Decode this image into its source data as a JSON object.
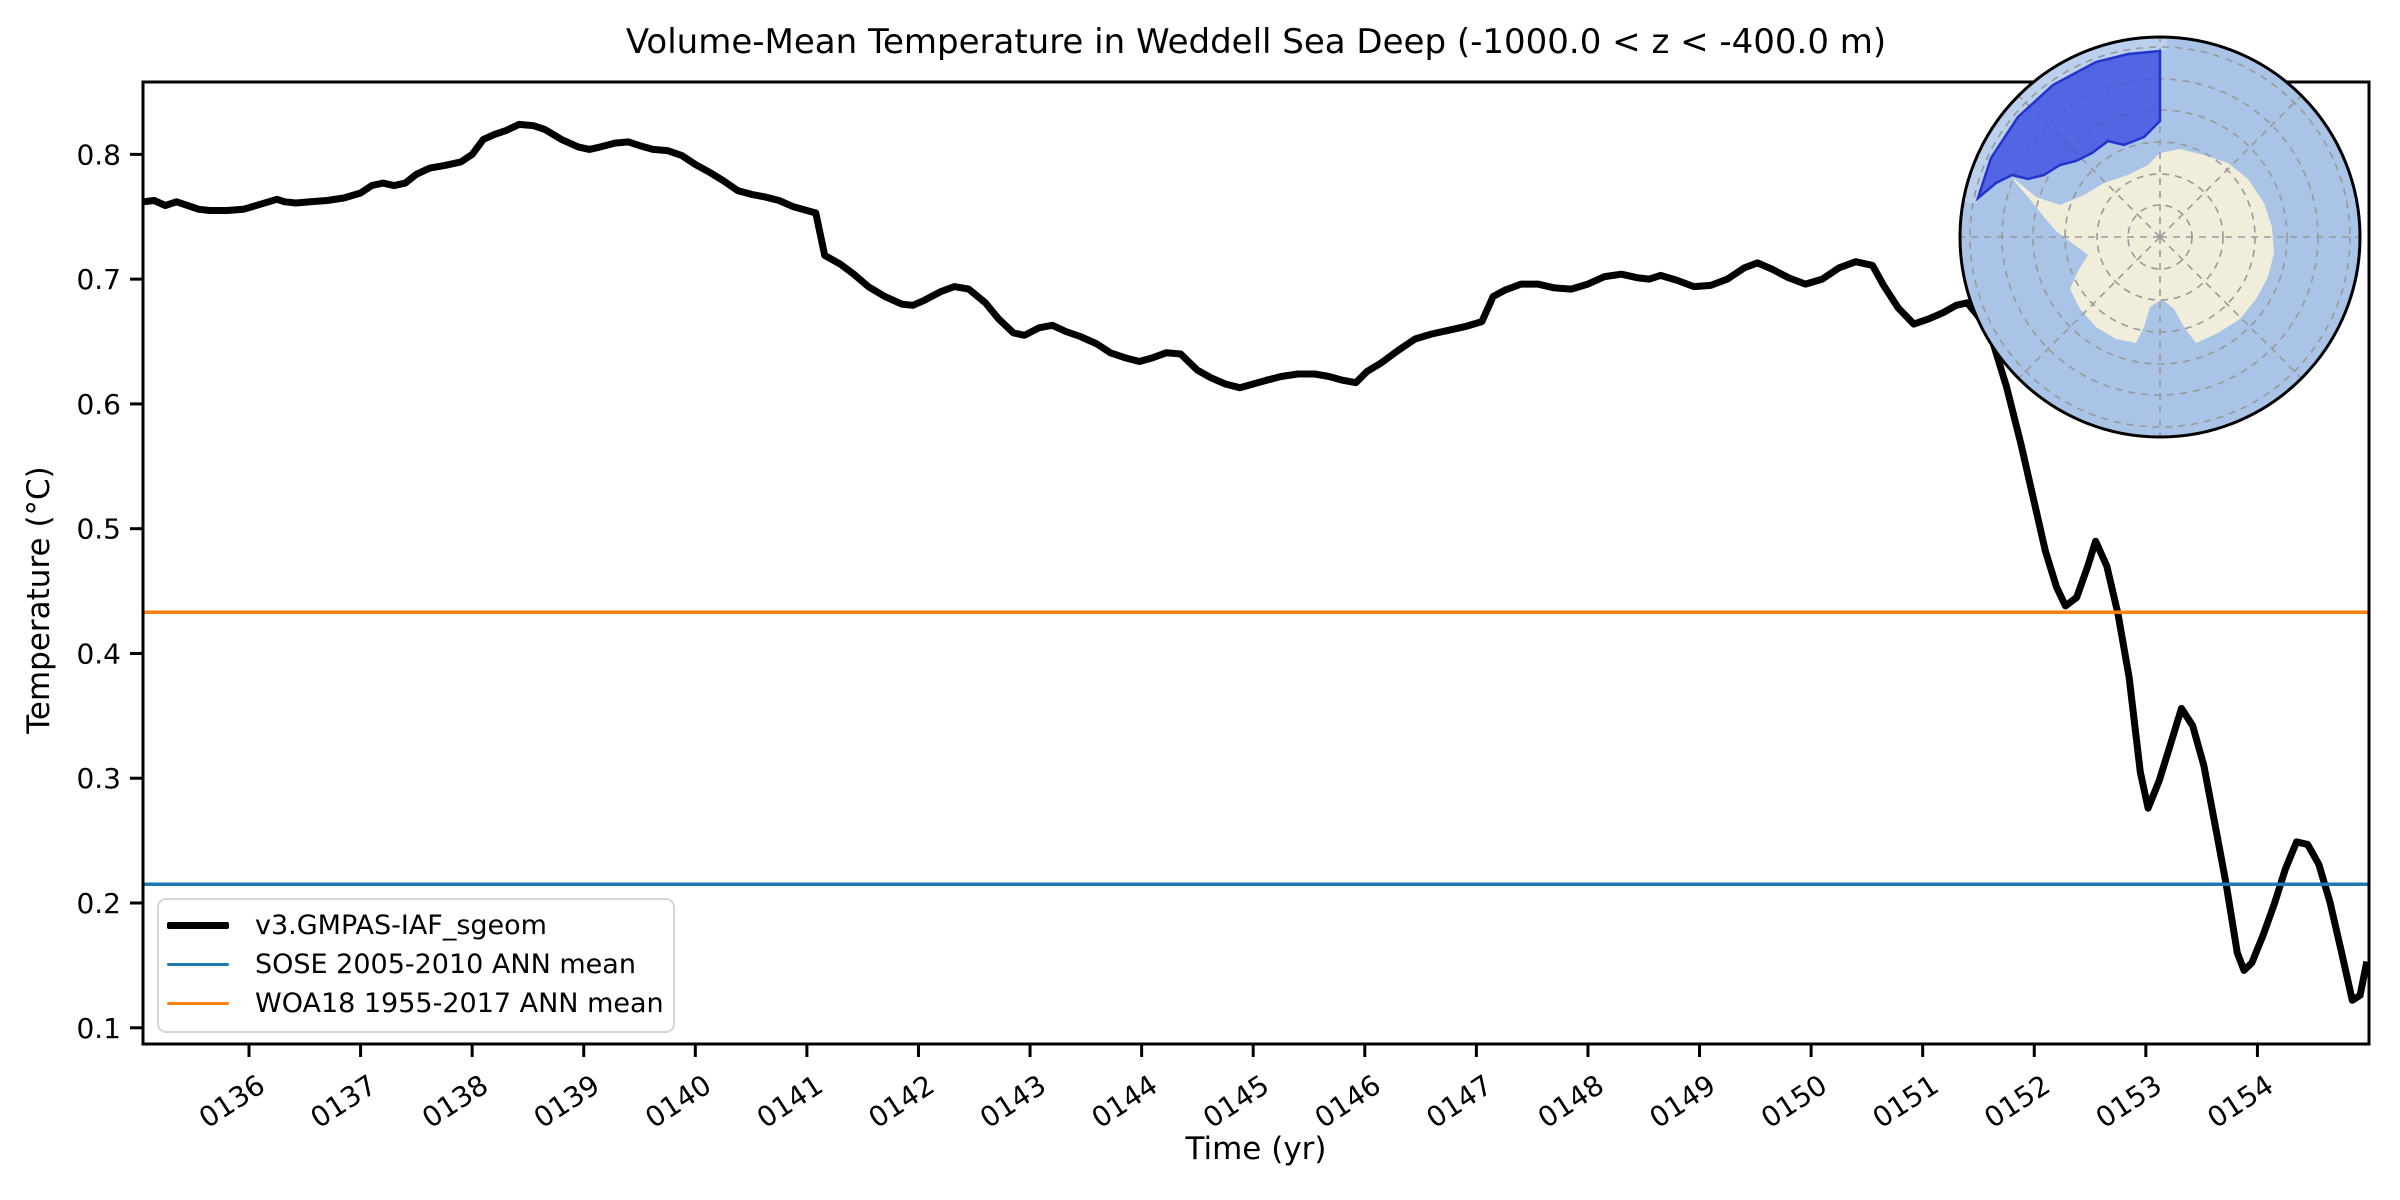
{
  "figure": {
    "title": "Volume-Mean Temperature in Weddell Sea Deep (-1000.0 < z < -400.0 m)",
    "background": "#ffffff"
  },
  "axes": {
    "xlabel": "Time (yr)",
    "ylabel": "Temperature (°C)",
    "tick_color": "#000000",
    "spine_color": "#000000"
  },
  "legend": {
    "items": [
      {
        "label": "v3.GMPAS-IAF_sgeom",
        "color": "#000000",
        "linewidth": 7
      },
      {
        "label": "SOSE 2005-2010 ANN mean",
        "color": "#1f77b4",
        "linewidth": 3.5
      },
      {
        "label": "WOA18 1955-2017 ANN mean",
        "color": "#ff7f0e",
        "linewidth": 3.5
      }
    ]
  },
  "inset_map": {
    "description": "South polar stereographic map of Antarctica with highlighted analysis region",
    "region_label": "Weddell Sea region",
    "colors": {
      "ocean": "#a9c4e6",
      "outer_band": "#bad0ed",
      "land": "#f0eeda",
      "highlight_fill": "#3a4ae0",
      "highlight_edge": "#2433cc",
      "graticule": "#999999",
      "outline": "#000000"
    }
  },
  "chart_data": {
    "type": "line",
    "title": "Volume-Mean Temperature in Weddell Sea Deep (-1000.0 < z < -400.0 m)",
    "xlabel": "Time (yr)",
    "ylabel": "Temperature (°C)",
    "xlim": [
      135.05,
      155.0
    ],
    "ylim": [
      0.087,
      0.858
    ],
    "grid": false,
    "legend_position": "lower left",
    "x_ticks": [
      {
        "value": 136,
        "label": "0136"
      },
      {
        "value": 137,
        "label": "0137"
      },
      {
        "value": 138,
        "label": "0138"
      },
      {
        "value": 139,
        "label": "0139"
      },
      {
        "value": 140,
        "label": "0140"
      },
      {
        "value": 141,
        "label": "0141"
      },
      {
        "value": 142,
        "label": "0142"
      },
      {
        "value": 143,
        "label": "0143"
      },
      {
        "value": 144,
        "label": "0144"
      },
      {
        "value": 145,
        "label": "0145"
      },
      {
        "value": 146,
        "label": "0146"
      },
      {
        "value": 147,
        "label": "0147"
      },
      {
        "value": 148,
        "label": "0148"
      },
      {
        "value": 149,
        "label": "0149"
      },
      {
        "value": 150,
        "label": "0150"
      },
      {
        "value": 151,
        "label": "0151"
      },
      {
        "value": 152,
        "label": "0152"
      },
      {
        "value": 153,
        "label": "0153"
      },
      {
        "value": 154,
        "label": "0154"
      }
    ],
    "y_ticks": [
      {
        "value": 0.1,
        "label": "0.1"
      },
      {
        "value": 0.2,
        "label": "0.2"
      },
      {
        "value": 0.3,
        "label": "0.3"
      },
      {
        "value": 0.4,
        "label": "0.4"
      },
      {
        "value": 0.5,
        "label": "0.5"
      },
      {
        "value": 0.6,
        "label": "0.6"
      },
      {
        "value": 0.7,
        "label": "0.7"
      },
      {
        "value": 0.8,
        "label": "0.8"
      }
    ],
    "hlines": [
      {
        "name": "SOSE 2005-2010 ANN mean",
        "value": 0.215,
        "color": "#1f77b4",
        "linewidth": 3.5
      },
      {
        "name": "WOA18 1955-2017 ANN mean",
        "value": 0.433,
        "color": "#ff7f0e",
        "linewidth": 3.5
      }
    ],
    "series": [
      {
        "name": "v3.GMPAS-IAF_sgeom",
        "color": "#000000",
        "linewidth": 7,
        "points": [
          [
            135.05,
            0.762
          ],
          [
            135.15,
            0.763
          ],
          [
            135.25,
            0.759
          ],
          [
            135.35,
            0.762
          ],
          [
            135.45,
            0.759
          ],
          [
            135.55,
            0.756
          ],
          [
            135.65,
            0.755
          ],
          [
            135.8,
            0.755
          ],
          [
            135.95,
            0.756
          ],
          [
            136.1,
            0.76
          ],
          [
            136.25,
            0.764
          ],
          [
            136.32,
            0.762
          ],
          [
            136.42,
            0.761
          ],
          [
            136.55,
            0.762
          ],
          [
            136.7,
            0.763
          ],
          [
            136.85,
            0.765
          ],
          [
            137.0,
            0.769
          ],
          [
            137.1,
            0.775
          ],
          [
            137.2,
            0.777
          ],
          [
            137.3,
            0.775
          ],
          [
            137.4,
            0.777
          ],
          [
            137.5,
            0.784
          ],
          [
            137.62,
            0.789
          ],
          [
            137.75,
            0.791
          ],
          [
            137.9,
            0.794
          ],
          [
            138.0,
            0.8
          ],
          [
            138.1,
            0.812
          ],
          [
            138.2,
            0.816
          ],
          [
            138.3,
            0.819
          ],
          [
            138.42,
            0.824
          ],
          [
            138.55,
            0.823
          ],
          [
            138.65,
            0.82
          ],
          [
            138.8,
            0.812
          ],
          [
            138.95,
            0.806
          ],
          [
            139.05,
            0.804
          ],
          [
            139.15,
            0.806
          ],
          [
            139.28,
            0.809
          ],
          [
            139.4,
            0.81
          ],
          [
            139.5,
            0.807
          ],
          [
            139.62,
            0.804
          ],
          [
            139.75,
            0.803
          ],
          [
            139.88,
            0.799
          ],
          [
            140.0,
            0.792
          ],
          [
            140.12,
            0.786
          ],
          [
            140.25,
            0.779
          ],
          [
            140.38,
            0.771
          ],
          [
            140.5,
            0.768
          ],
          [
            140.62,
            0.766
          ],
          [
            140.75,
            0.763
          ],
          [
            140.88,
            0.758
          ],
          [
            141.0,
            0.755
          ],
          [
            141.08,
            0.753
          ],
          [
            141.16,
            0.719
          ],
          [
            141.3,
            0.712
          ],
          [
            141.42,
            0.704
          ],
          [
            141.55,
            0.694
          ],
          [
            141.7,
            0.686
          ],
          [
            141.85,
            0.68
          ],
          [
            141.95,
            0.679
          ],
          [
            142.05,
            0.683
          ],
          [
            142.2,
            0.69
          ],
          [
            142.32,
            0.694
          ],
          [
            142.45,
            0.692
          ],
          [
            142.6,
            0.681
          ],
          [
            142.72,
            0.668
          ],
          [
            142.85,
            0.657
          ],
          [
            142.95,
            0.655
          ],
          [
            143.08,
            0.661
          ],
          [
            143.2,
            0.663
          ],
          [
            143.32,
            0.658
          ],
          [
            143.45,
            0.654
          ],
          [
            143.6,
            0.648
          ],
          [
            143.72,
            0.641
          ],
          [
            143.85,
            0.637
          ],
          [
            143.98,
            0.634
          ],
          [
            144.1,
            0.637
          ],
          [
            144.22,
            0.641
          ],
          [
            144.35,
            0.64
          ],
          [
            144.5,
            0.627
          ],
          [
            144.62,
            0.621
          ],
          [
            144.75,
            0.616
          ],
          [
            144.88,
            0.613
          ],
          [
            145.0,
            0.616
          ],
          [
            145.12,
            0.619
          ],
          [
            145.25,
            0.622
          ],
          [
            145.4,
            0.624
          ],
          [
            145.55,
            0.624
          ],
          [
            145.68,
            0.622
          ],
          [
            145.8,
            0.619
          ],
          [
            145.92,
            0.617
          ],
          [
            146.02,
            0.626
          ],
          [
            146.15,
            0.633
          ],
          [
            146.3,
            0.643
          ],
          [
            146.45,
            0.652
          ],
          [
            146.6,
            0.656
          ],
          [
            146.75,
            0.659
          ],
          [
            146.9,
            0.662
          ],
          [
            147.05,
            0.666
          ],
          [
            147.15,
            0.686
          ],
          [
            147.25,
            0.691
          ],
          [
            147.4,
            0.696
          ],
          [
            147.55,
            0.696
          ],
          [
            147.7,
            0.693
          ],
          [
            147.85,
            0.692
          ],
          [
            148.0,
            0.696
          ],
          [
            148.15,
            0.702
          ],
          [
            148.3,
            0.704
          ],
          [
            148.45,
            0.701
          ],
          [
            148.55,
            0.7
          ],
          [
            148.65,
            0.703
          ],
          [
            148.8,
            0.699
          ],
          [
            148.95,
            0.694
          ],
          [
            149.1,
            0.695
          ],
          [
            149.25,
            0.7
          ],
          [
            149.4,
            0.709
          ],
          [
            149.52,
            0.713
          ],
          [
            149.65,
            0.708
          ],
          [
            149.8,
            0.701
          ],
          [
            149.95,
            0.696
          ],
          [
            150.1,
            0.7
          ],
          [
            150.25,
            0.709
          ],
          [
            150.4,
            0.714
          ],
          [
            150.55,
            0.711
          ],
          [
            150.65,
            0.695
          ],
          [
            150.78,
            0.677
          ],
          [
            150.92,
            0.664
          ],
          [
            151.05,
            0.668
          ],
          [
            151.18,
            0.673
          ],
          [
            151.3,
            0.679
          ],
          [
            151.4,
            0.681
          ],
          [
            151.5,
            0.67
          ],
          [
            151.62,
            0.652
          ],
          [
            151.75,
            0.614
          ],
          [
            151.88,
            0.568
          ],
          [
            152.0,
            0.521
          ],
          [
            152.1,
            0.482
          ],
          [
            152.2,
            0.453
          ],
          [
            152.28,
            0.438
          ],
          [
            152.38,
            0.445
          ],
          [
            152.48,
            0.47
          ],
          [
            152.55,
            0.49
          ],
          [
            152.65,
            0.47
          ],
          [
            152.75,
            0.432
          ],
          [
            152.85,
            0.381
          ],
          [
            152.95,
            0.305
          ],
          [
            153.02,
            0.276
          ],
          [
            153.12,
            0.298
          ],
          [
            153.22,
            0.327
          ],
          [
            153.32,
            0.356
          ],
          [
            153.42,
            0.342
          ],
          [
            153.52,
            0.31
          ],
          [
            153.62,
            0.263
          ],
          [
            153.72,
            0.215
          ],
          [
            153.82,
            0.16
          ],
          [
            153.88,
            0.146
          ],
          [
            153.95,
            0.152
          ],
          [
            154.05,
            0.174
          ],
          [
            154.15,
            0.199
          ],
          [
            154.25,
            0.227
          ],
          [
            154.35,
            0.249
          ],
          [
            154.45,
            0.247
          ],
          [
            154.55,
            0.231
          ],
          [
            154.65,
            0.201
          ],
          [
            154.75,
            0.162
          ],
          [
            154.85,
            0.122
          ],
          [
            154.92,
            0.126
          ],
          [
            154.98,
            0.153
          ]
        ]
      }
    ]
  }
}
